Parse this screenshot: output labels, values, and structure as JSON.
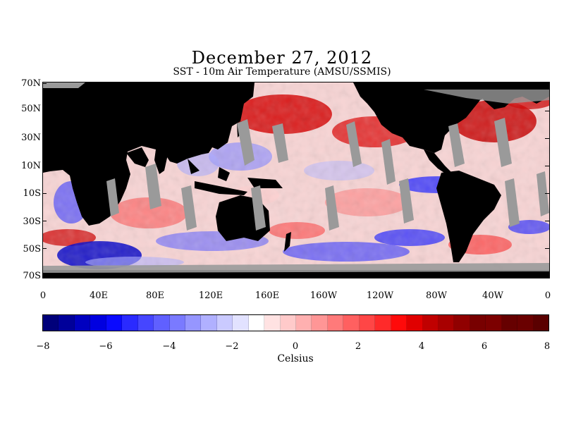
{
  "title": "December 27, 2012",
  "subtitle": "SST - 10m Air Temperature (AMSU/SSMIS)",
  "map": {
    "lat_labels": [
      "70N",
      "50N",
      "30N",
      "10N",
      "10S",
      "30S",
      "50S",
      "70S"
    ],
    "lon_labels": [
      "0",
      "40E",
      "80E",
      "120E",
      "160E",
      "160W",
      "120W",
      "80W",
      "40W",
      "0"
    ],
    "colors": {
      "land": "#000000",
      "missing": "#9a9a9a",
      "warm": "#e00000",
      "cool": "#0a0ad8"
    }
  },
  "colorbar": {
    "min": -8,
    "max": 8,
    "step": 0.5,
    "tick_labels": [
      "−8",
      "−6",
      "−4",
      "−2",
      "0",
      "2",
      "4",
      "6",
      "8"
    ],
    "unit": "Celsius",
    "colors": [
      "#00007a",
      "#00009a",
      "#0000c0",
      "#0000e0",
      "#0a0aff",
      "#2a2aff",
      "#4646ff",
      "#6060ff",
      "#7a7aff",
      "#9696ff",
      "#b0b0ff",
      "#cacaff",
      "#e2e2ff",
      "#ffffff",
      "#ffe2e2",
      "#ffcaca",
      "#ffb0b0",
      "#ff9696",
      "#ff7a7a",
      "#ff6060",
      "#ff4646",
      "#ff2a2a",
      "#ff0a0a",
      "#e00000",
      "#c00000",
      "#a80000",
      "#900000",
      "#780000",
      "#7c0000",
      "#660000",
      "#6a0000",
      "#5a0000"
    ]
  }
}
